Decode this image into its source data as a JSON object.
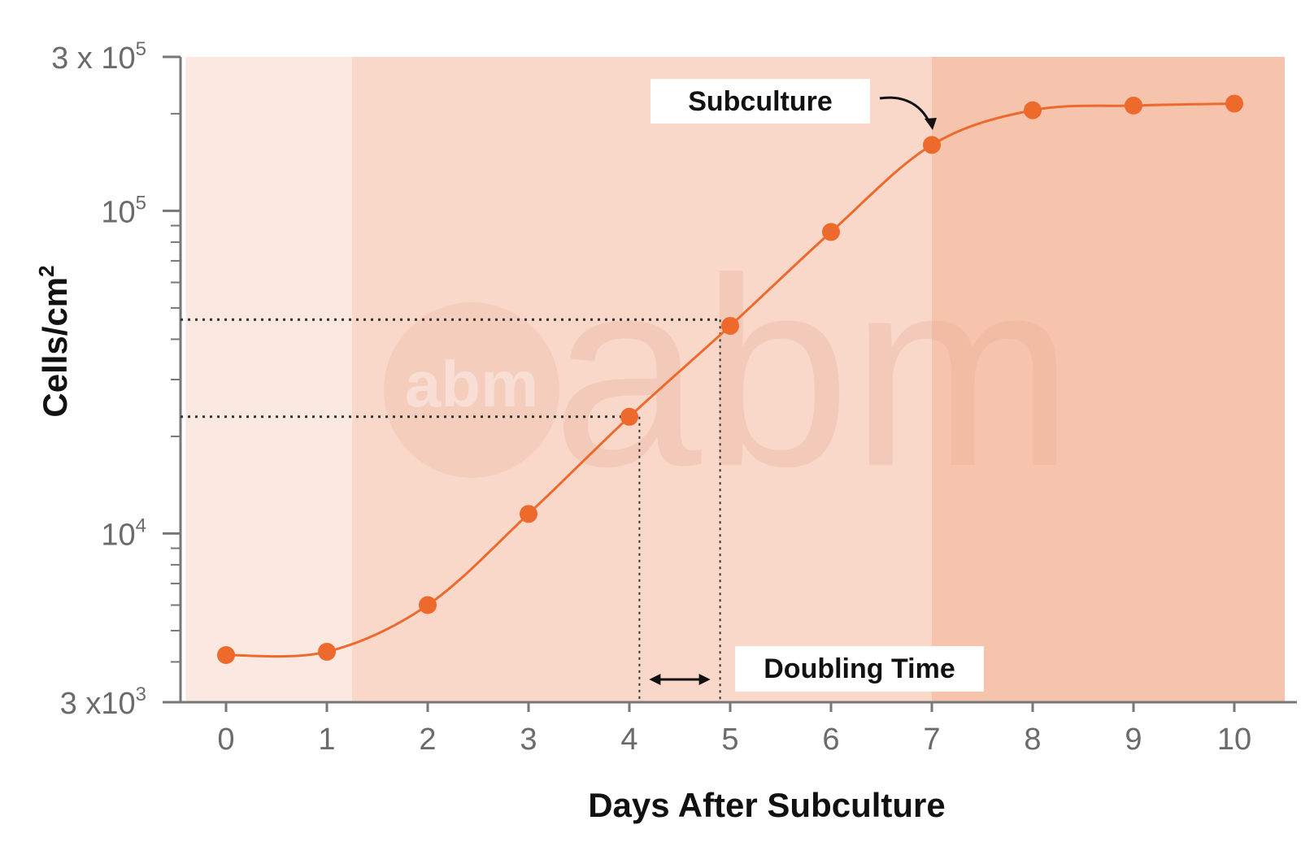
{
  "chart_data": {
    "type": "line",
    "x_axis": {
      "label": "Days After Subculture",
      "range": [
        0,
        10
      ],
      "ticks": [
        "0",
        "1",
        "2",
        "3",
        "4",
        "5",
        "6",
        "7",
        "8",
        "9",
        "10"
      ]
    },
    "y_axis": {
      "label": "Cells/cm",
      "label_superscript": "2",
      "scale": "log",
      "range": [
        3000,
        300000
      ],
      "ticks": [
        {
          "value": 3000,
          "base": "3 x10",
          "exp": "3"
        },
        {
          "value": 10000,
          "base": "10",
          "exp": "4"
        },
        {
          "value": 100000,
          "base": "10",
          "exp": "5"
        },
        {
          "value": 300000,
          "base": "3 x 10",
          "exp": "5"
        }
      ]
    },
    "series": [
      {
        "points": [
          {
            "x": 0,
            "y": 4200
          },
          {
            "x": 1,
            "y": 4300
          },
          {
            "x": 2,
            "y": 6000
          },
          {
            "x": 3,
            "y": 11500
          },
          {
            "x": 4,
            "y": 23000
          },
          {
            "x": 5,
            "y": 44000
          },
          {
            "x": 6,
            "y": 86000
          },
          {
            "x": 7,
            "y": 160000
          },
          {
            "x": 8,
            "y": 205000
          },
          {
            "x": 9,
            "y": 212000
          },
          {
            "x": 10,
            "y": 215000
          }
        ]
      }
    ],
    "phases": [
      {
        "x_start": -0.4,
        "x_end": 1.25,
        "color": "#fbe9e1"
      },
      {
        "x_start": 1.25,
        "x_end": 7.0,
        "color": "#f9d8ca"
      },
      {
        "x_start": 7.0,
        "x_end": 10.5,
        "color": "#f6c4ad"
      }
    ],
    "annotations": {
      "subculture": "Subculture",
      "doubling_time": "Doubling Time",
      "doubling_levels": [
        23000,
        46000
      ],
      "doubling_days": [
        4.1,
        4.9
      ]
    },
    "watermark": "abm",
    "grid": false,
    "colors": {
      "line": "#ee6a2c",
      "marker": "#ee6a2c",
      "axis": "#777777",
      "guide": "#333333"
    }
  }
}
